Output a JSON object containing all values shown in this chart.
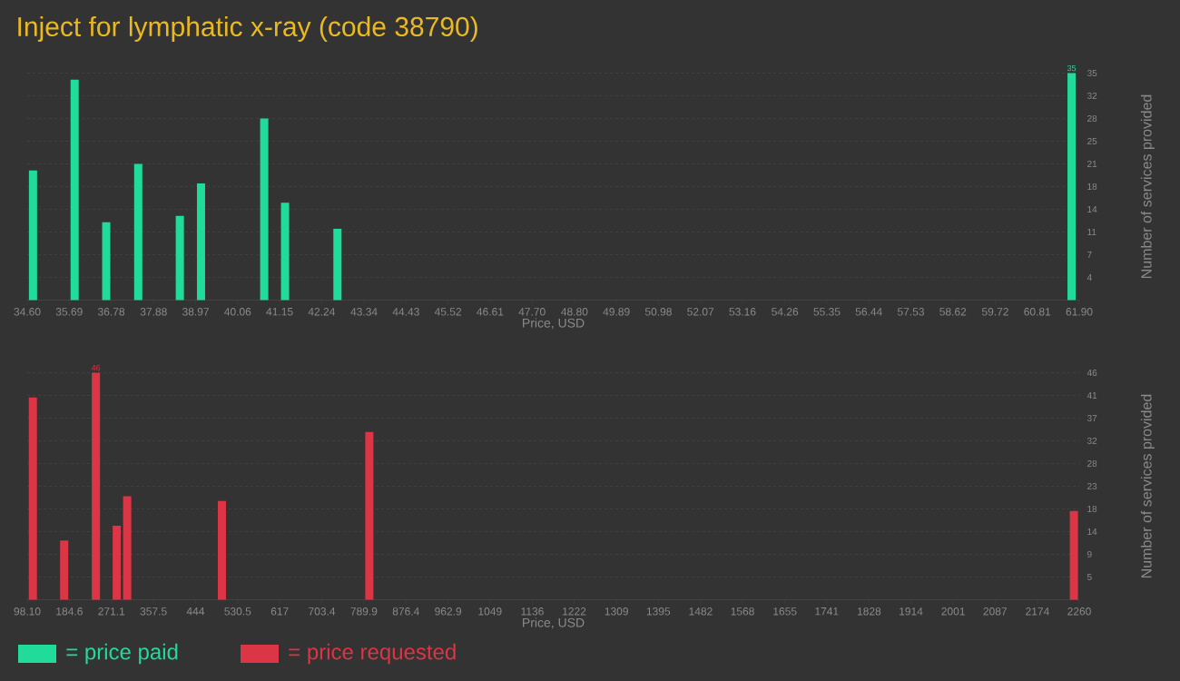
{
  "chart_data": [
    {
      "type": "bar",
      "title": "Inject for lymphatic x-ray (code 38790)",
      "xlabel": "Price, USD",
      "ylabel": "Number of services provided",
      "x": [
        34.75,
        35.83,
        36.65,
        37.48,
        38.56,
        39.11,
        40.75,
        41.29,
        42.65,
        61.7
      ],
      "series": [
        {
          "name": "= price paid",
          "color": "#21db9b",
          "values": [
            20,
            34,
            12,
            21,
            13,
            18,
            28,
            15,
            11,
            35
          ],
          "value_labels": [
            null,
            null,
            null,
            null,
            null,
            null,
            null,
            null,
            null,
            "35"
          ]
        }
      ],
      "xlim": [
        34.6,
        61.9
      ],
      "ylim": [
        0,
        35
      ],
      "xticks": [
        {
          "value": 34.6,
          "label": "34.60"
        },
        35.69,
        36.78,
        37.88,
        38.97,
        40.06,
        41.15,
        42.24,
        43.34,
        44.43,
        45.52,
        46.61,
        {
          "value": 47.7,
          "label": "47.70"
        },
        {
          "value": 48.8,
          "label": "48.80"
        },
        49.89,
        50.98,
        52.07,
        53.16,
        54.26,
        55.35,
        56.44,
        57.53,
        58.62,
        59.72,
        60.81,
        {
          "value": 61.9,
          "label": "61.90"
        }
      ],
      "yticks": [
        {
          "value": 3.5,
          "label": "4"
        },
        7,
        {
          "value": 10.5,
          "label": "11"
        },
        14,
        {
          "value": 17.5,
          "label": "18"
        },
        21,
        {
          "value": 24.5,
          "label": "25"
        },
        28,
        {
          "value": 31.5,
          "label": "32"
        },
        35
      ],
      "grid": "y",
      "legend": "bottom"
    },
    {
      "type": "bar",
      "xlabel": "Price, USD",
      "ylabel": "Number of services provided",
      "x": [
        109.7,
        174.0,
        239.2,
        282.0,
        303.5,
        498.2,
        801.1,
        2249
      ],
      "series": [
        {
          "name": "= price requested",
          "color": "#dc3545",
          "values": [
            41,
            12,
            46,
            15,
            21,
            20,
            34,
            18
          ],
          "value_labels": [
            null,
            null,
            "46",
            null,
            null,
            null,
            null,
            null
          ]
        }
      ],
      "xlim": [
        98.1,
        2260
      ],
      "ylim": [
        0,
        46
      ],
      "xticks": [
        {
          "value": 98.1,
          "label": "98.10"
        },
        184.6,
        271.1,
        357.5,
        444,
        530.5,
        617,
        703.4,
        789.9,
        876.4,
        962.9,
        1049,
        1136,
        1222,
        1309,
        1395,
        1482,
        1568,
        1655,
        1741,
        1828,
        1914,
        2001,
        2087,
        2174,
        2260
      ],
      "yticks": [
        {
          "value": 4.6,
          "label": "5"
        },
        {
          "value": 9.2,
          "label": "9"
        },
        {
          "value": 13.8,
          "label": "14"
        },
        {
          "value": 18.4,
          "label": "18"
        },
        23,
        {
          "value": 27.6,
          "label": "28"
        },
        {
          "value": 32.2,
          "label": "32"
        },
        {
          "value": 36.8,
          "label": "37"
        },
        {
          "value": 41.4,
          "label": "41"
        },
        46
      ],
      "grid": "y",
      "legend": "bottom"
    }
  ]
}
